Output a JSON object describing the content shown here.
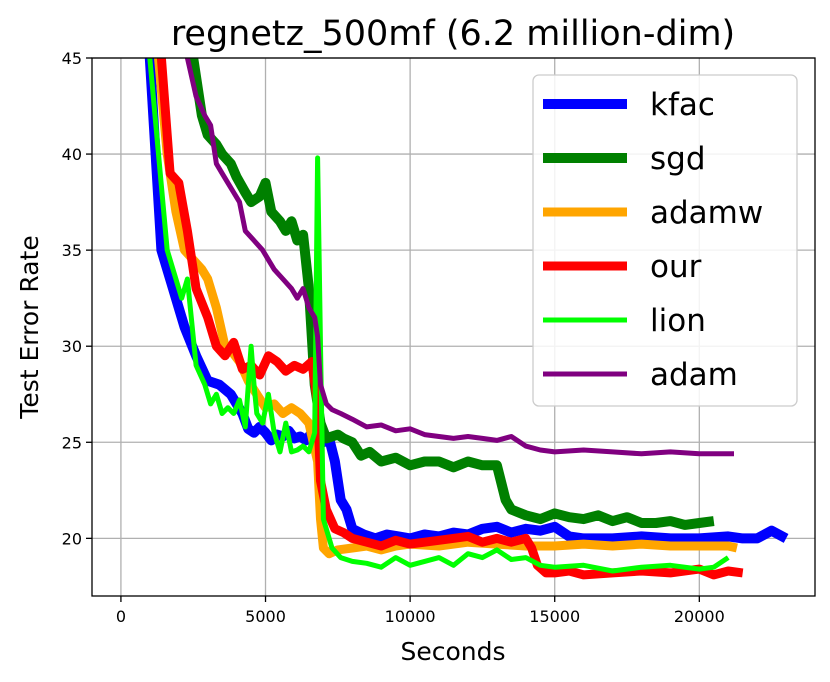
{
  "chart_data": {
    "type": "line",
    "title": "regnetz_500mf (6.2 million-dim)",
    "xlabel": "Seconds",
    "ylabel": "Test Error Rate",
    "xlim": [
      -1000,
      24000
    ],
    "ylim": [
      17,
      45
    ],
    "xticks": [
      0,
      5000,
      10000,
      15000,
      20000
    ],
    "yticks": [
      20,
      25,
      30,
      35,
      40,
      45
    ],
    "grid": true,
    "legend_position": "top-right",
    "series": [
      {
        "name": "kfac",
        "color": "#0000ff",
        "width": 10,
        "x": [
          1000,
          1400,
          1800,
          2200,
          2600,
          3000,
          3400,
          3800,
          4200,
          4400,
          4600,
          4800,
          5000,
          5200,
          5400,
          5600,
          5800,
          6000,
          6200,
          6400,
          6600,
          6800,
          7000,
          7200,
          7400,
          7600,
          7800,
          8000,
          8400,
          8800,
          9200,
          9600,
          10000,
          10500,
          11000,
          11500,
          12000,
          12500,
          13000,
          13500,
          14000,
          14500,
          15000,
          15500,
          16000,
          17000,
          18000,
          19000,
          20000,
          21000,
          21500,
          22000,
          22500,
          23000
        ],
        "y": [
          45,
          35,
          33,
          31,
          29.5,
          28.2,
          28,
          27.5,
          26.5,
          25.7,
          25.5,
          25.8,
          25.5,
          25.1,
          25.4,
          25.3,
          25.6,
          25.2,
          25.3,
          25.1,
          25.5,
          25,
          25,
          25.2,
          24,
          22,
          21.5,
          20.5,
          20.2,
          20,
          20.2,
          20.1,
          20,
          20.2,
          20.1,
          20.3,
          20.2,
          20.5,
          20.6,
          20.3,
          20.5,
          20.4,
          20.6,
          20.1,
          20,
          20,
          20.1,
          20,
          20,
          20.1,
          20,
          20,
          20.4,
          20
        ]
      },
      {
        "name": "sgd",
        "color": "#008000",
        "width": 10,
        "x": [
          2500,
          2800,
          3000,
          3300,
          3500,
          3800,
          4000,
          4300,
          4500,
          4800,
          5000,
          5200,
          5500,
          5700,
          5900,
          6100,
          6300,
          6500,
          6700,
          6900,
          7100,
          7300,
          7500,
          7700,
          8000,
          8300,
          8600,
          9000,
          9500,
          10000,
          10500,
          11000,
          11500,
          12000,
          12500,
          13000,
          13300,
          13500,
          14000,
          14500,
          15000,
          15500,
          16000,
          16500,
          17000,
          17500,
          18000,
          18500,
          19000,
          19500,
          20000,
          20500
        ],
        "y": [
          45,
          42,
          41,
          40.5,
          40,
          39.5,
          38.8,
          38,
          37.5,
          37.8,
          38.5,
          37,
          36.5,
          36,
          36.5,
          35.5,
          35.8,
          33,
          28,
          26,
          25.2,
          25.3,
          25.4,
          25.2,
          25,
          24.3,
          24.5,
          24,
          24.2,
          23.8,
          24,
          24,
          23.7,
          24,
          23.8,
          23.8,
          22,
          21.5,
          21.2,
          21,
          21.3,
          21.1,
          21,
          21.2,
          20.9,
          21.1,
          20.8,
          20.8,
          20.9,
          20.7,
          20.8,
          20.9
        ]
      },
      {
        "name": "adamw",
        "color": "#ffa500",
        "width": 9,
        "x": [
          1300,
          1600,
          1900,
          2200,
          2500,
          2800,
          3000,
          3300,
          3600,
          3800,
          4100,
          4400,
          4700,
          5000,
          5300,
          5600,
          5900,
          6200,
          6500,
          6800,
          6900,
          7000,
          7200,
          7500,
          8000,
          8500,
          9000,
          9500,
          10000,
          11000,
          12000,
          13000,
          14000,
          15000,
          16000,
          17000,
          18000,
          19000,
          20000,
          21000,
          21300
        ],
        "y": [
          45,
          40,
          37,
          35,
          34.5,
          34,
          33.5,
          32,
          30,
          29.8,
          29.2,
          28.2,
          27.5,
          26.8,
          27,
          26.5,
          26.8,
          26.5,
          26,
          24,
          21,
          19.5,
          19.2,
          19.4,
          19.5,
          19.6,
          19.4,
          19.6,
          19.7,
          19.6,
          19.8,
          19.7,
          19.6,
          19.6,
          19.7,
          19.6,
          19.7,
          19.6,
          19.6,
          19.6,
          19.5
        ]
      },
      {
        "name": "our",
        "color": "#ff0000",
        "width": 9,
        "x": [
          1400,
          1700,
          2000,
          2300,
          2600,
          3000,
          3300,
          3600,
          3900,
          4200,
          4500,
          4800,
          5100,
          5400,
          5700,
          6000,
          6300,
          6600,
          6800,
          6900,
          7100,
          7400,
          7700,
          8000,
          8500,
          9000,
          9500,
          10000,
          11000,
          12000,
          12500,
          13000,
          13500,
          14000,
          14200,
          14400,
          14700,
          15000,
          15500,
          16000,
          17000,
          18000,
          19000,
          20000,
          20500,
          21000,
          21500
        ],
        "y": [
          45,
          39,
          38.5,
          36,
          33,
          31.5,
          30,
          29.5,
          30.2,
          28.8,
          29,
          28.5,
          29.5,
          29.2,
          28.7,
          29,
          28.8,
          29.2,
          27,
          23,
          21.5,
          20.5,
          20.3,
          20,
          19.8,
          19.6,
          19.9,
          19.7,
          19.9,
          20.1,
          19.8,
          20,
          19.8,
          20,
          19.5,
          18.6,
          18.2,
          18.2,
          18.3,
          18.1,
          18.2,
          18.3,
          18.2,
          18.4,
          18.1,
          18.3,
          18.2
        ]
      },
      {
        "name": "lion",
        "color": "#00ff00",
        "width": 5,
        "x": [
          1000,
          1300,
          1600,
          1900,
          2100,
          2300,
          2600,
          2900,
          3100,
          3300,
          3500,
          3700,
          3900,
          4100,
          4300,
          4500,
          4600,
          4700,
          4900,
          5100,
          5300,
          5500,
          5700,
          5900,
          6100,
          6300,
          6500,
          6700,
          6800,
          6900,
          7000,
          7300,
          7600,
          8000,
          8500,
          9000,
          9500,
          10000,
          10500,
          11000,
          11500,
          12000,
          12500,
          13000,
          13500,
          14000,
          14500,
          15000,
          16000,
          17000,
          18000,
          19000,
          20000,
          20500,
          21000
        ],
        "y": [
          45,
          40,
          35,
          33.5,
          32.5,
          33.5,
          29,
          28,
          27,
          27.5,
          26.5,
          26.8,
          26.5,
          27.2,
          25.8,
          30,
          28,
          26.5,
          26,
          27.5,
          25.5,
          24.5,
          26,
          24.5,
          24.6,
          24.8,
          24.5,
          25.5,
          39.8,
          30,
          21,
          19.5,
          19,
          18.8,
          18.7,
          18.5,
          19,
          18.6,
          18.8,
          19,
          18.6,
          19.2,
          19,
          19.4,
          18.9,
          19,
          18.6,
          18.5,
          18.6,
          18.3,
          18.5,
          18.6,
          18.4,
          18.5,
          19
        ]
      },
      {
        "name": "adam",
        "color": "#800080",
        "width": 5,
        "x": [
          2300,
          2600,
          2900,
          3100,
          3300,
          3500,
          3700,
          3900,
          4100,
          4300,
          4600,
          4900,
          5100,
          5300,
          5600,
          5900,
          6100,
          6300,
          6500,
          6700,
          6800,
          6900,
          7100,
          7300,
          7600,
          8000,
          8500,
          9000,
          9500,
          10000,
          10500,
          11000,
          11500,
          12000,
          12500,
          13000,
          13500,
          14000,
          14500,
          15000,
          16000,
          17000,
          18000,
          19000,
          20000,
          21000,
          21200
        ],
        "y": [
          45,
          43,
          42,
          41.5,
          39.5,
          39,
          38.5,
          38,
          37.5,
          36,
          35.5,
          35,
          34.5,
          34,
          33.5,
          33,
          32.5,
          33,
          32,
          31.5,
          30.5,
          28,
          27,
          26.7,
          26.5,
          26.2,
          25.8,
          25.9,
          25.6,
          25.7,
          25.4,
          25.3,
          25.2,
          25.3,
          25.2,
          25.1,
          25.3,
          24.8,
          24.6,
          24.5,
          24.6,
          24.5,
          24.4,
          24.5,
          24.4,
          24.4,
          24.4
        ]
      }
    ]
  }
}
